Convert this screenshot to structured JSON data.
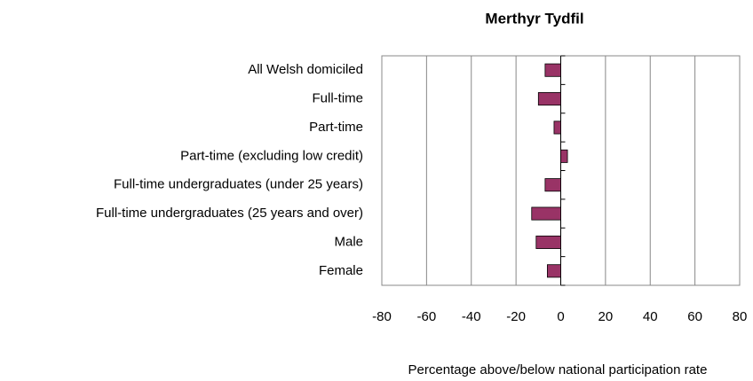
{
  "chart_data": {
    "type": "bar",
    "orientation": "horizontal",
    "title": "Merthyr Tydfil",
    "x_label": "Percentage above/below national participation rate",
    "categories": [
      "All Welsh domiciled",
      "Full-time",
      "Part-time",
      "Part-time (excluding low credit)",
      "Full-time undergraduates (under 25 years)",
      "Full-time undergraduates (25 years and over)",
      "Male",
      "Female"
    ],
    "values": [
      -7,
      -10,
      -3,
      3,
      -7,
      -13,
      -11,
      -6
    ],
    "color": "#993366",
    "xlim": [
      -80,
      80
    ],
    "xticks": [
      -80,
      -60,
      -40,
      -20,
      0,
      20,
      40,
      60,
      80
    ],
    "grid": true
  }
}
